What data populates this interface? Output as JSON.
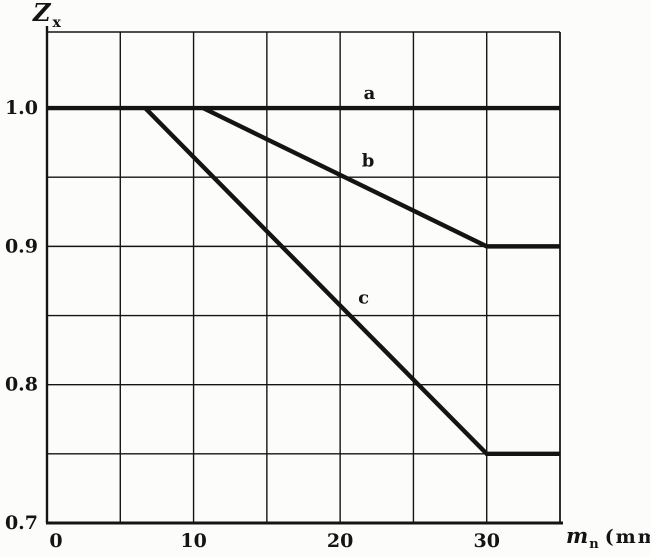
{
  "page": {
    "background": "#fcfcfa",
    "ink": "#141414"
  },
  "y_axis_title": {
    "main": "Z",
    "sub": "x"
  },
  "x_axis_title": {
    "main": "m",
    "sub": "n",
    "unit": "(mm)"
  },
  "chart_data": {
    "type": "line",
    "title": "",
    "xlabel": "m_n (mm)",
    "ylabel": "Z_x",
    "xlim": [
      0,
      35
    ],
    "ylim": [
      0.7,
      1.055
    ],
    "grid": true,
    "x_gridlines": [
      0,
      5,
      10,
      15,
      20,
      25,
      30,
      35
    ],
    "y_gridlines": [
      0.7,
      0.75,
      0.8,
      0.85,
      0.9,
      0.95,
      1.0
    ],
    "x_ticks": [
      {
        "value": 0,
        "label": "0"
      },
      {
        "value": 10,
        "label": "10"
      },
      {
        "value": 20,
        "label": "20"
      },
      {
        "value": 30,
        "label": "30"
      }
    ],
    "y_ticks": [
      {
        "value": 1.0,
        "label": "1.0"
      },
      {
        "value": 0.9,
        "label": "0.9"
      },
      {
        "value": 0.8,
        "label": "0.8"
      },
      {
        "value": 0.7,
        "label": "0.7"
      }
    ],
    "series": [
      {
        "name": "a",
        "points": [
          [
            0,
            1.0
          ],
          [
            35,
            1.0
          ]
        ],
        "label_at": [
          22.0,
          1.011
        ]
      },
      {
        "name": "b",
        "points": [
          [
            10.65,
            1.0
          ],
          [
            30,
            0.9
          ],
          [
            35,
            0.9
          ]
        ],
        "label_at": [
          21.9,
          0.962
        ]
      },
      {
        "name": "c",
        "points": [
          [
            6.7,
            1.0
          ],
          [
            30,
            0.75
          ],
          [
            35,
            0.75
          ]
        ],
        "label_at": [
          21.6,
          0.863
        ]
      }
    ],
    "legend": "inline curve labels a, b, c"
  }
}
